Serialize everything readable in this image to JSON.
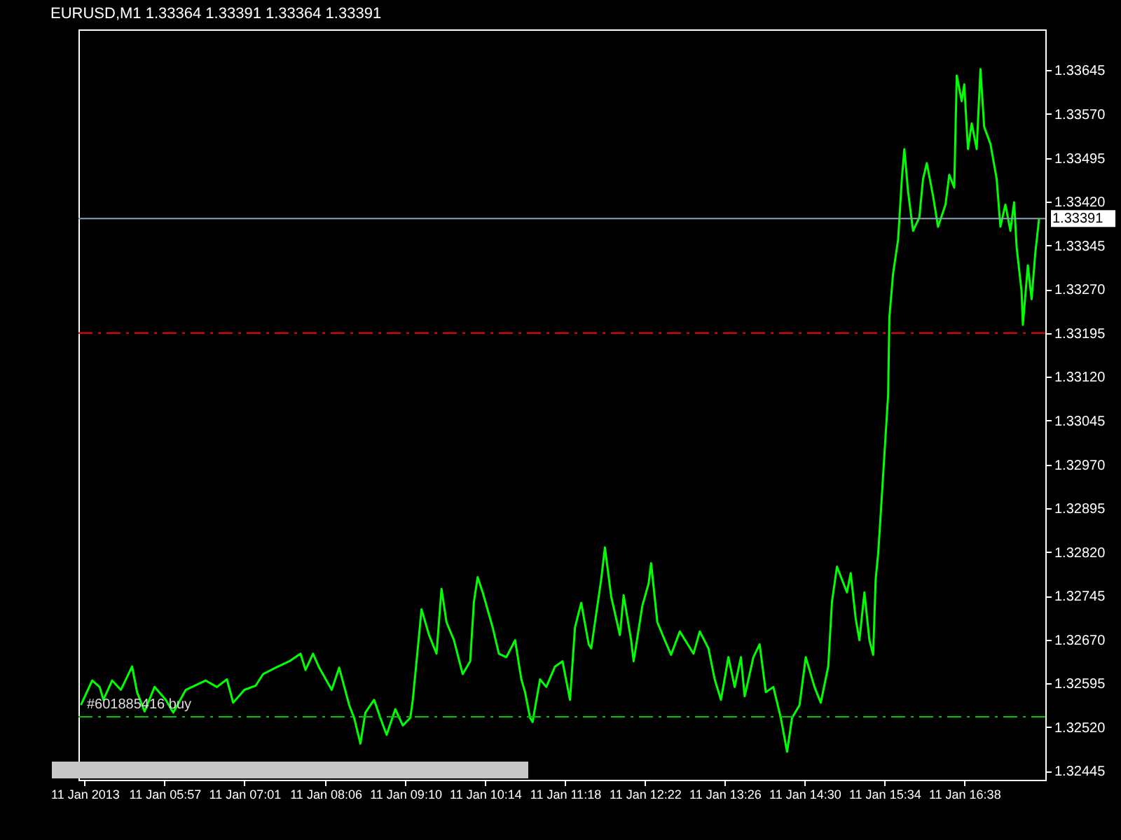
{
  "chart_data": {
    "type": "line",
    "title": "EURUSD,M1  1.33364 1.33391 1.33364 1.33391",
    "x": [
      "2013-01-11T04:50",
      "2013-01-11T04:59",
      "2013-01-11T05:05",
      "2013-01-11T05:08",
      "2013-01-11T05:15",
      "2013-01-11T05:22",
      "2013-01-11T05:31",
      "2013-01-11T05:35",
      "2013-01-11T05:41",
      "2013-01-11T05:49",
      "2013-01-11T05:58",
      "2013-01-11T06:04",
      "2013-01-11T06:14",
      "2013-01-11T06:30",
      "2013-01-11T06:39",
      "2013-01-11T06:47",
      "2013-01-11T06:52",
      "2013-01-11T07:01",
      "2013-01-11T07:10",
      "2013-01-11T07:16",
      "2013-01-11T07:26",
      "2013-01-11T07:37",
      "2013-01-11T07:46",
      "2013-01-11T07:50",
      "2013-01-11T07:56",
      "2013-01-11T08:01",
      "2013-01-11T08:11",
      "2013-01-11T08:17",
      "2013-01-11T08:25",
      "2013-01-11T08:29",
      "2013-01-11T08:34",
      "2013-01-11T08:38",
      "2013-01-11T08:45",
      "2013-01-11T08:50",
      "2013-01-11T08:55",
      "2013-01-11T09:02",
      "2013-01-11T09:08",
      "2013-01-11T09:14",
      "2013-01-11T09:16",
      "2013-01-11T09:19",
      "2013-01-11T09:23",
      "2013-01-11T09:29",
      "2013-01-11T09:35",
      "2013-01-11T09:39",
      "2013-01-11T09:43",
      "2013-01-11T09:49",
      "2013-01-11T09:56",
      "2013-01-11T10:02",
      "2013-01-11T10:05",
      "2013-01-11T10:08",
      "2013-01-11T10:12",
      "2013-01-11T10:20",
      "2013-01-11T10:25",
      "2013-01-11T10:31",
      "2013-01-11T10:38",
      "2013-01-11T10:43",
      "2013-01-11T10:46",
      "2013-01-11T10:50",
      "2013-01-11T10:52",
      "2013-01-11T10:58",
      "2013-01-11T11:03",
      "2013-01-11T11:10",
      "2013-01-11T11:16",
      "2013-01-11T11:22",
      "2013-01-11T11:26",
      "2013-01-11T11:31",
      "2013-01-11T11:37",
      "2013-01-11T11:39",
      "2013-01-11T11:47",
      "2013-01-11T11:50",
      "2013-01-11T11:55",
      "2013-01-11T12:02",
      "2013-01-11T12:05",
      "2013-01-11T12:11",
      "2013-01-11T12:13",
      "2013-01-11T12:20",
      "2013-01-11T12:25",
      "2013-01-11T12:27",
      "2013-01-11T12:32",
      "2013-01-11T12:38",
      "2013-01-11T12:43",
      "2013-01-11T12:50",
      "2013-01-11T13:01",
      "2013-01-11T13:06",
      "2013-01-11T13:13",
      "2013-01-11T13:18",
      "2013-01-11T13:23",
      "2013-01-11T13:29",
      "2013-01-11T13:34",
      "2013-01-11T13:39",
      "2013-01-11T13:42",
      "2013-01-11T13:49",
      "2013-01-11T13:54",
      "2013-01-11T13:59",
      "2013-01-11T14:05",
      "2013-01-11T14:11",
      "2013-01-11T14:16",
      "2013-01-11T14:20",
      "2013-01-11T14:26",
      "2013-01-11T14:31",
      "2013-01-11T14:38",
      "2013-01-11T14:43",
      "2013-01-11T14:49",
      "2013-01-11T14:52",
      "2013-01-11T14:56",
      "2013-01-11T15:04",
      "2013-01-11T15:07",
      "2013-01-11T15:11",
      "2013-01-11T15:14",
      "2013-01-11T15:18",
      "2013-01-11T15:22",
      "2013-01-11T15:25",
      "2013-01-11T15:27",
      "2013-01-11T15:29",
      "2013-01-11T15:31",
      "2013-01-11T15:37",
      "2013-01-11T15:38",
      "2013-01-11T15:41",
      "2013-01-11T15:45",
      "2013-01-11T15:48",
      "2013-01-11T15:50",
      "2013-01-11T15:53",
      "2013-01-11T15:57",
      "2013-01-11T16:02",
      "2013-01-11T16:05",
      "2013-01-11T16:08",
      "2013-01-11T16:13",
      "2013-01-11T16:17",
      "2013-01-11T16:23",
      "2013-01-11T16:26",
      "2013-01-11T16:30",
      "2013-01-11T16:32",
      "2013-01-11T16:36",
      "2013-01-11T16:38",
      "2013-01-11T16:41",
      "2013-01-11T16:44",
      "2013-01-11T16:48",
      "2013-01-11T16:51",
      "2013-01-11T16:54",
      "2013-01-11T16:59",
      "2013-01-11T17:04",
      "2013-01-11T17:07",
      "2013-01-11T17:11",
      "2013-01-11T17:15",
      "2013-01-11T17:18",
      "2013-01-11T17:20",
      "2013-01-11T17:24",
      "2013-01-11T17:25",
      "2013-01-11T17:29",
      "2013-01-11T17:32",
      "2013-01-11T17:35",
      "2013-01-11T17:38"
    ],
    "series": [
      {
        "color": "#00ff00",
        "values": [
          1.32558,
          1.326,
          1.32589,
          1.32567,
          1.326,
          1.32584,
          1.32624,
          1.3258,
          1.32547,
          1.32589,
          1.32567,
          1.32545,
          1.32584,
          1.326,
          1.32589,
          1.32602,
          1.32562,
          1.32584,
          1.32591,
          1.32611,
          1.32622,
          1.32633,
          1.32646,
          1.32618,
          1.32646,
          1.32622,
          1.32584,
          1.32622,
          1.32558,
          1.32536,
          1.32492,
          1.32545,
          1.32567,
          1.32536,
          1.32507,
          1.32551,
          1.32523,
          1.32536,
          1.32567,
          1.32633,
          1.32722,
          1.32678,
          1.32646,
          1.32757,
          1.327,
          1.32669,
          1.32611,
          1.32633,
          1.32735,
          1.32777,
          1.32751,
          1.32691,
          1.32646,
          1.3264,
          1.32669,
          1.32602,
          1.3258,
          1.32536,
          1.32529,
          1.32602,
          1.32589,
          1.32624,
          1.32633,
          1.32567,
          1.32691,
          1.32733,
          1.32662,
          1.32655,
          1.32773,
          1.32828,
          1.32744,
          1.32678,
          1.32746,
          1.32669,
          1.32633,
          1.32728,
          1.32766,
          1.32801,
          1.327,
          1.32669,
          1.32644,
          1.32684,
          1.32646,
          1.32684,
          1.32655,
          1.32602,
          1.32567,
          1.3264,
          1.32589,
          1.3264,
          1.32573,
          1.3264,
          1.32662,
          1.3258,
          1.32589,
          1.32536,
          1.32478,
          1.32536,
          1.32558,
          1.3264,
          1.32589,
          1.32562,
          1.32624,
          1.32735,
          1.32795,
          1.32751,
          1.32784,
          1.32706,
          1.32669,
          1.32751,
          1.32669,
          1.32644,
          1.32773,
          1.32817,
          1.32883,
          1.33089,
          1.33222,
          1.33297,
          1.33355,
          1.33459,
          1.3351,
          1.33437,
          1.3337,
          1.33393,
          1.33459,
          1.33486,
          1.3343,
          1.33377,
          1.33415,
          1.33466,
          1.33444,
          1.33636,
          1.33592,
          1.33621,
          1.3351,
          1.33554,
          1.3351,
          1.33647,
          1.33548,
          1.33519,
          1.33459,
          1.33377,
          1.33415,
          1.3337,
          1.33419,
          1.33342,
          1.33266,
          1.33209,
          1.33311,
          1.33253,
          1.33333,
          1.33391
        ]
      }
    ],
    "xlim": [
      "2013-01-11T04:48",
      "2013-01-11T17:43"
    ],
    "xticks": [
      {
        "value": "2013-01-11T04:53",
        "label": "11 Jan 2013"
      },
      {
        "value": "2013-01-11T05:57",
        "label": "11 Jan 05:57"
      },
      {
        "value": "2013-01-11T07:01",
        "label": "11 Jan 07:01"
      },
      {
        "value": "2013-01-11T08:06",
        "label": "11 Jan 08:06"
      },
      {
        "value": "2013-01-11T09:10",
        "label": "11 Jan 09:10"
      },
      {
        "value": "2013-01-11T10:14",
        "label": "11 Jan 10:14"
      },
      {
        "value": "2013-01-11T11:18",
        "label": "11 Jan 11:18"
      },
      {
        "value": "2013-01-11T12:22",
        "label": "11 Jan 12:22"
      },
      {
        "value": "2013-01-11T13:26",
        "label": "11 Jan 13:26"
      },
      {
        "value": "2013-01-11T14:30",
        "label": "11 Jan 14:30"
      },
      {
        "value": "2013-01-11T15:34",
        "label": "11 Jan 15:34"
      },
      {
        "value": "2013-01-11T16:38",
        "label": "11 Jan 16:38"
      }
    ],
    "ylim": [
      1.3243,
      1.33715
    ],
    "yticks": [
      {
        "value": 1.32445,
        "label": "1.32445"
      },
      {
        "value": 1.3252,
        "label": "1.32520"
      },
      {
        "value": 1.32595,
        "label": "1.32595"
      },
      {
        "value": 1.3267,
        "label": "1.32670"
      },
      {
        "value": 1.32745,
        "label": "1.32745"
      },
      {
        "value": 1.3282,
        "label": "1.32820"
      },
      {
        "value": 1.32895,
        "label": "1.32895"
      },
      {
        "value": 1.3297,
        "label": "1.32970"
      },
      {
        "value": 1.33045,
        "label": "1.33045"
      },
      {
        "value": 1.3312,
        "label": "1.33120"
      },
      {
        "value": 1.33195,
        "label": "1.33195"
      },
      {
        "value": 1.3327,
        "label": "1.33270"
      },
      {
        "value": 1.33345,
        "label": "1.33345"
      },
      {
        "value": 1.3342,
        "label": "1.33420"
      },
      {
        "value": 1.33495,
        "label": "1.33495"
      },
      {
        "value": 1.3357,
        "label": "1.33570"
      },
      {
        "value": 1.33645,
        "label": "1.33645"
      }
    ],
    "ref_lines": [
      {
        "axis": "y",
        "value": 1.33391,
        "label": "1.33391",
        "color": "#8fa0b4",
        "line_style": "solid"
      },
      {
        "axis": "y",
        "value": 1.33195,
        "color": "#ff0000",
        "line_style": "dashed"
      },
      {
        "axis": "y",
        "value": 1.32538,
        "label": "#601885416 buy",
        "color": "#00c800",
        "line_style": "dashed"
      }
    ],
    "grid": false
  }
}
